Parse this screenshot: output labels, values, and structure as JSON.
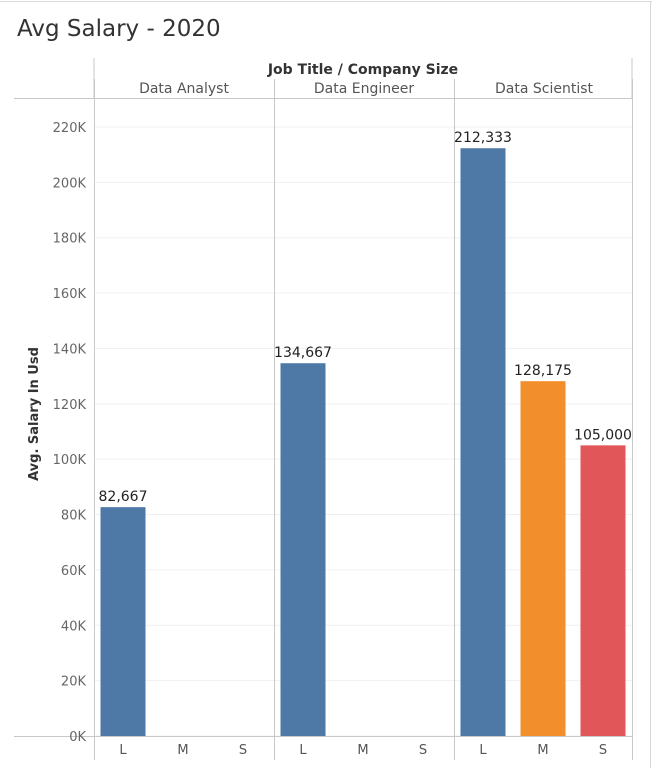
{
  "title": "Avg Salary - 2020",
  "chart_data": {
    "type": "bar",
    "title": "Avg Salary - 2020",
    "column_header": "Job Title  /  Company Size",
    "ylabel": "Avg. Salary In Usd",
    "ylim": [
      0,
      222000
    ],
    "yticks": [
      0,
      20000,
      40000,
      60000,
      80000,
      100000,
      120000,
      140000,
      160000,
      180000,
      200000,
      220000
    ],
    "ytick_labels": [
      "0K",
      "20K",
      "40K",
      "60K",
      "80K",
      "100K",
      "120K",
      "140K",
      "160K",
      "180K",
      "200K",
      "220K"
    ],
    "grid": true,
    "legend": "none",
    "groups": [
      {
        "name": "Data Analyst",
        "categories": [
          "L",
          "M",
          "S"
        ],
        "values": [
          82667,
          null,
          null
        ],
        "labels": [
          "82,667",
          "",
          ""
        ]
      },
      {
        "name": "Data Engineer",
        "categories": [
          "L",
          "M",
          "S"
        ],
        "values": [
          134667,
          null,
          null
        ],
        "labels": [
          "134,667",
          "",
          ""
        ]
      },
      {
        "name": "Data Scientist",
        "categories": [
          "L",
          "M",
          "S"
        ],
        "values": [
          212333,
          128175,
          105000
        ],
        "labels": [
          "212,333",
          "128,175",
          "105,000"
        ]
      }
    ],
    "colors": {
      "L": "#4e79a7",
      "M": "#f28e2b",
      "S": "#e15759"
    },
    "grid_color": "#f0f0f0",
    "axis_color": "#c8c8c8"
  }
}
